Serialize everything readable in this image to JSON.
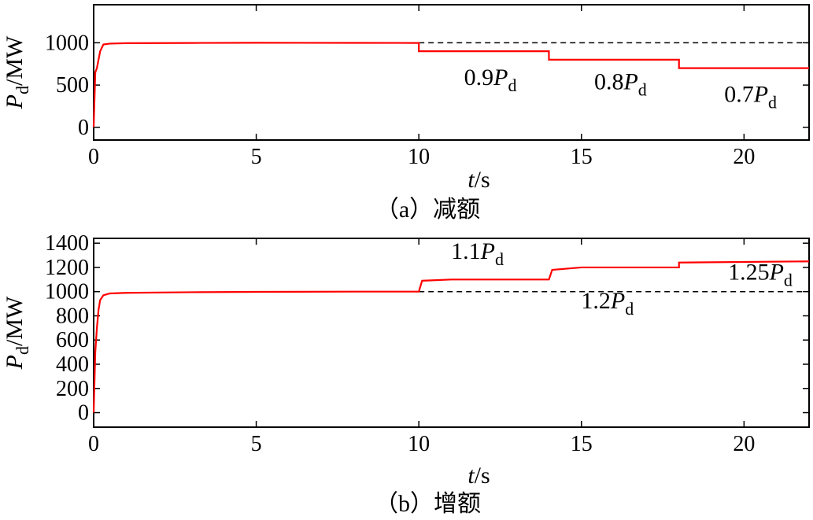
{
  "chart_data": [
    {
      "type": "line",
      "caption": "（a）减额",
      "xlabel": "t/s",
      "ylabel": "Pd/MW",
      "xlim": [
        0,
        22
      ],
      "ylim": [
        -150,
        1450
      ],
      "x_ticks": [
        0,
        5,
        10,
        15,
        20
      ],
      "y_ticks": [
        0,
        500,
        1000
      ],
      "grid": false,
      "reference_line": {
        "y": 1000,
        "style": "dashed"
      },
      "series": [
        {
          "color": "#ff0000",
          "points": [
            [
              0,
              0
            ],
            [
              0.05,
              650
            ],
            [
              0.1,
              700
            ],
            [
              0.15,
              800
            ],
            [
              0.2,
              900
            ],
            [
              0.3,
              980
            ],
            [
              0.5,
              990
            ],
            [
              1,
              995
            ],
            [
              3,
              998
            ],
            [
              5,
              1000
            ],
            [
              8,
              999
            ],
            [
              10,
              998
            ],
            [
              10,
              900
            ],
            [
              14,
              900
            ],
            [
              14,
              800
            ],
            [
              18,
              800
            ],
            [
              18,
              700
            ],
            [
              22,
              700
            ]
          ]
        }
      ],
      "annotations": [
        {
          "text": "0.9P",
          "sub": "d",
          "x": 12.2,
          "y": 500
        },
        {
          "text": "0.8P",
          "sub": "d",
          "x": 16.2,
          "y": 450
        },
        {
          "text": "0.7P",
          "sub": "d",
          "x": 20.2,
          "y": 300
        }
      ]
    },
    {
      "type": "line",
      "caption": "（b）增额",
      "xlabel": "t/s",
      "ylabel": "Pd/MW",
      "xlim": [
        0,
        22
      ],
      "ylim": [
        -120,
        1440
      ],
      "x_ticks": [
        0,
        5,
        10,
        15,
        20
      ],
      "y_ticks": [
        0,
        200,
        400,
        600,
        800,
        1000,
        1200,
        1400
      ],
      "grid": false,
      "reference_line": {
        "y": 1000,
        "style": "dashed"
      },
      "series": [
        {
          "color": "#ff0000",
          "points": [
            [
              0,
              0
            ],
            [
              0.05,
              500
            ],
            [
              0.1,
              700
            ],
            [
              0.15,
              850
            ],
            [
              0.2,
              930
            ],
            [
              0.3,
              970
            ],
            [
              0.5,
              985
            ],
            [
              1,
              990
            ],
            [
              3,
              995
            ],
            [
              5,
              998
            ],
            [
              8,
              1000
            ],
            [
              10,
              1000
            ],
            [
              10.1,
              1090
            ],
            [
              11,
              1100
            ],
            [
              14,
              1100
            ],
            [
              14.1,
              1180
            ],
            [
              15,
              1200
            ],
            [
              18,
              1200
            ],
            [
              18,
              1240
            ],
            [
              22,
              1250
            ]
          ]
        }
      ],
      "annotations": [
        {
          "text": "1.1P",
          "sub": "d",
          "x": 11.8,
          "y": 1270
        },
        {
          "text": "1.2P",
          "sub": "d",
          "x": 15.8,
          "y": 860
        },
        {
          "text": "1.25P",
          "sub": "d",
          "x": 20.5,
          "y": 1100
        }
      ]
    }
  ]
}
